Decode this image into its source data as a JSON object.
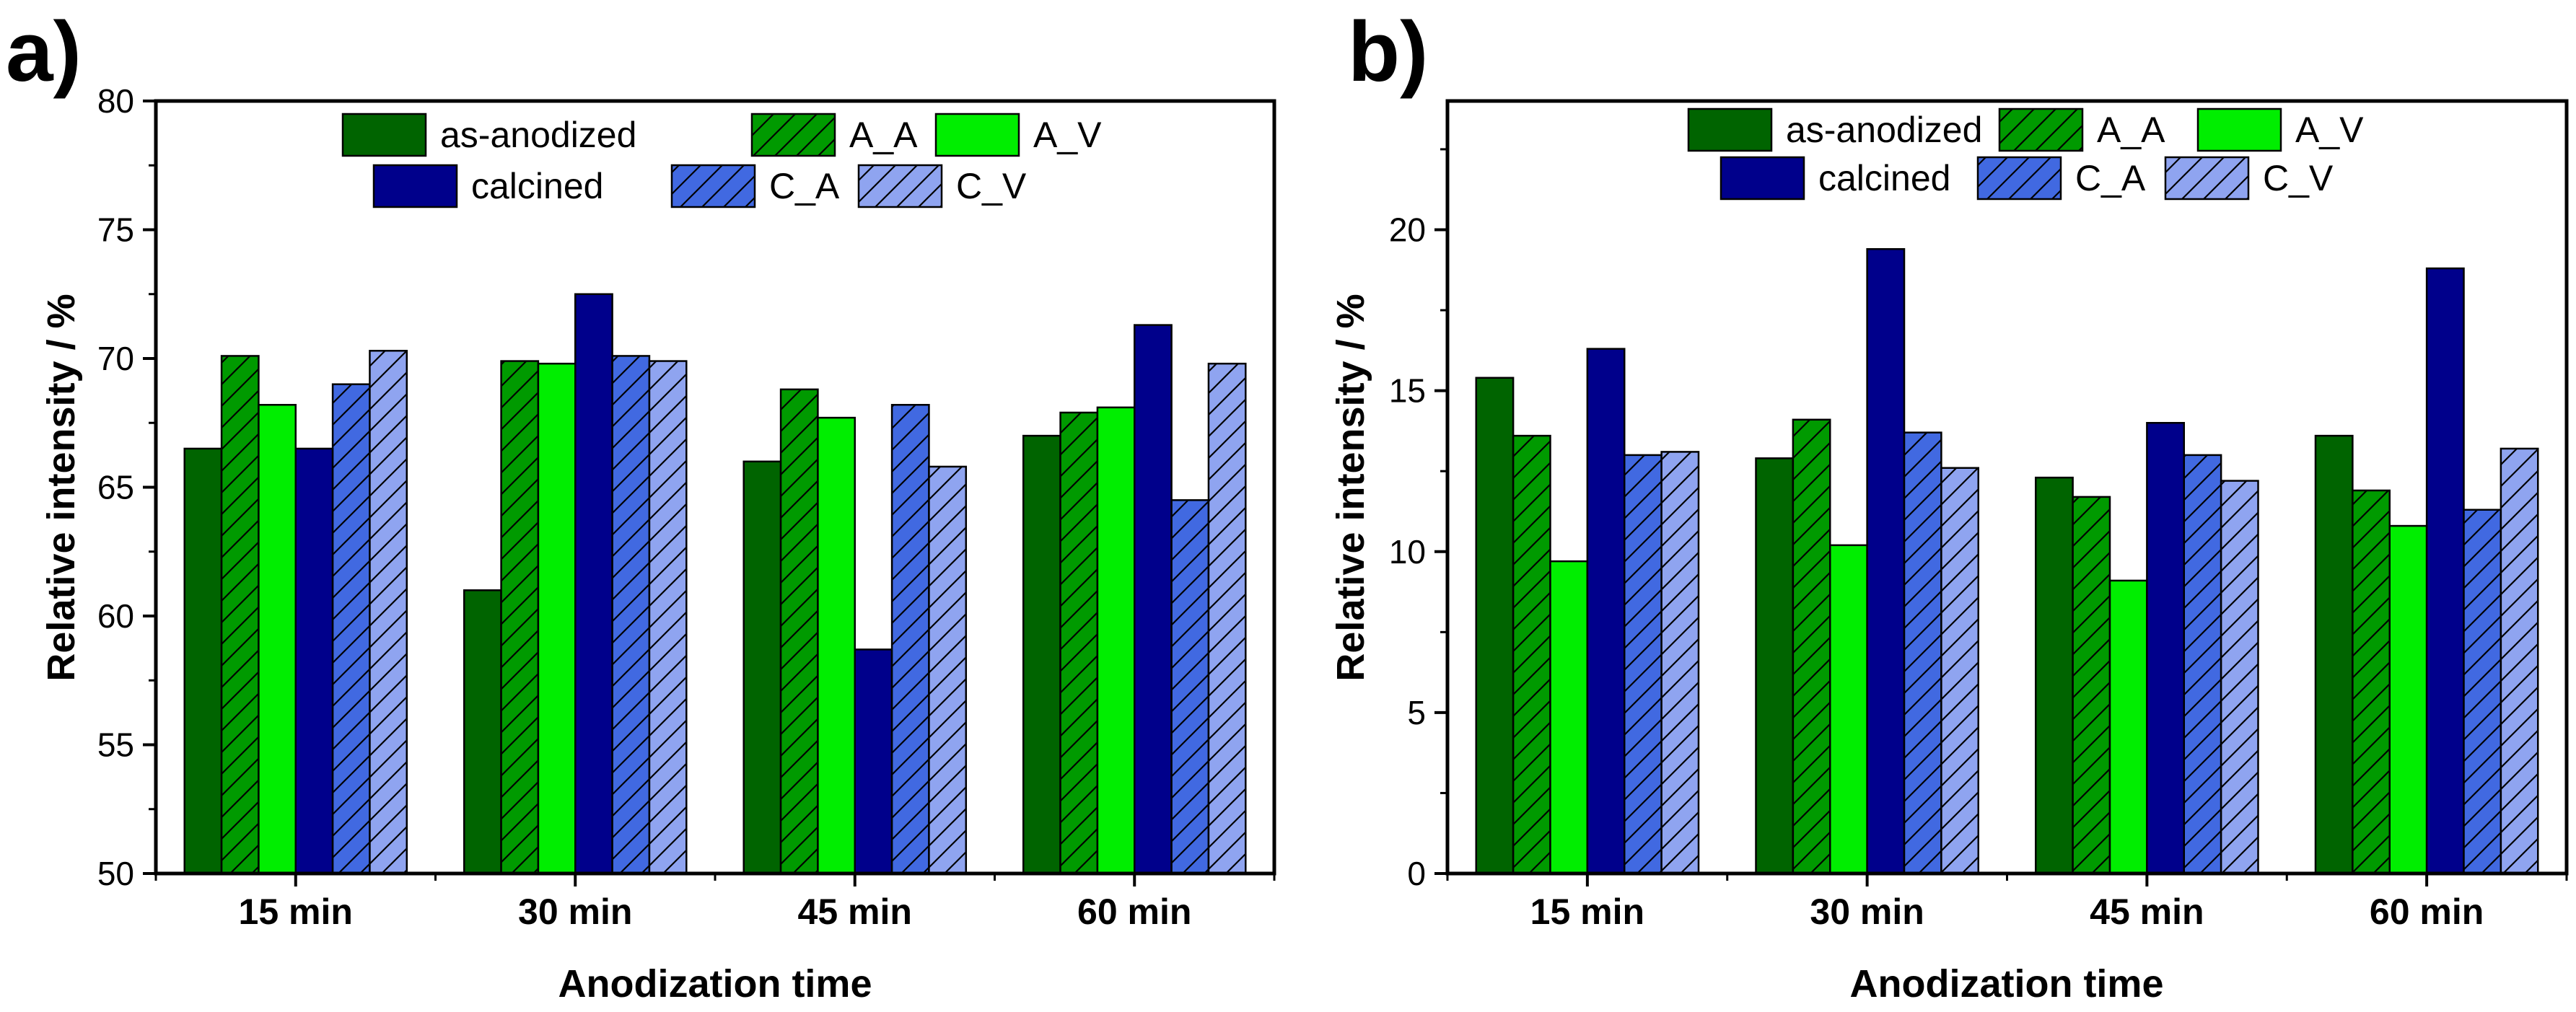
{
  "figure": {
    "panels": [
      "a)",
      "b)"
    ]
  },
  "chart_data": [
    {
      "type": "bar",
      "panel_label": "a)",
      "categories": [
        "15 min",
        "30 min",
        "45 min",
        "60 min"
      ],
      "xlabel": "Anodization time",
      "ylabel": "Relative intensity / %",
      "ylim": [
        50,
        80
      ],
      "yticks": [
        50,
        55,
        60,
        65,
        70,
        75,
        80
      ],
      "ytick_labels": [
        "50",
        "55",
        "60",
        "65",
        "70",
        "75",
        "80"
      ],
      "legend_position": "top-center",
      "series": [
        {
          "name": "as-anodized",
          "color": "#006400",
          "hatch": false,
          "values": [
            66.5,
            61.0,
            66.0,
            67.0
          ]
        },
        {
          "name": "A_A",
          "color": "#009a00",
          "hatch": true,
          "values": [
            70.1,
            69.9,
            68.8,
            67.9
          ]
        },
        {
          "name": "A_V",
          "color": "#00ee00",
          "hatch": false,
          "values": [
            68.2,
            69.8,
            67.7,
            68.1
          ]
        },
        {
          "name": "calcined",
          "color": "#00008b",
          "hatch": false,
          "values": [
            66.5,
            72.5,
            58.7,
            71.3
          ]
        },
        {
          "name": "C_A",
          "color": "#4169e1",
          "hatch": true,
          "values": [
            69.0,
            70.1,
            68.2,
            64.5
          ]
        },
        {
          "name": "C_V",
          "color": "#8fa4f0",
          "hatch": true,
          "values": [
            70.3,
            69.9,
            65.8,
            69.8
          ]
        }
      ]
    },
    {
      "type": "bar",
      "panel_label": "b)",
      "categories": [
        "15 min",
        "30 min",
        "45 min",
        "60 min"
      ],
      "xlabel": "Anodization time",
      "ylabel": "Relative intensity / %",
      "ylim": [
        0,
        24
      ],
      "yticks": [
        0,
        5,
        10,
        15,
        20
      ],
      "ytick_labels": [
        "0",
        "5",
        "10",
        "15",
        "20"
      ],
      "legend_position": "top-center",
      "series": [
        {
          "name": "as-anodized",
          "color": "#006400",
          "hatch": false,
          "values": [
            15.4,
            12.9,
            12.3,
            13.6
          ]
        },
        {
          "name": "A_A",
          "color": "#009a00",
          "hatch": true,
          "values": [
            13.6,
            14.1,
            11.7,
            11.9
          ]
        },
        {
          "name": "A_V",
          "color": "#00ee00",
          "hatch": false,
          "values": [
            9.7,
            10.2,
            9.1,
            10.8
          ]
        },
        {
          "name": "calcined",
          "color": "#00008b",
          "hatch": false,
          "values": [
            16.3,
            19.4,
            14.0,
            18.8
          ]
        },
        {
          "name": "C_A",
          "color": "#4169e1",
          "hatch": true,
          "values": [
            13.0,
            13.7,
            13.0,
            11.3
          ]
        },
        {
          "name": "C_V",
          "color": "#8fa4f0",
          "hatch": true,
          "values": [
            13.1,
            12.6,
            12.2,
            13.2
          ]
        }
      ]
    }
  ]
}
